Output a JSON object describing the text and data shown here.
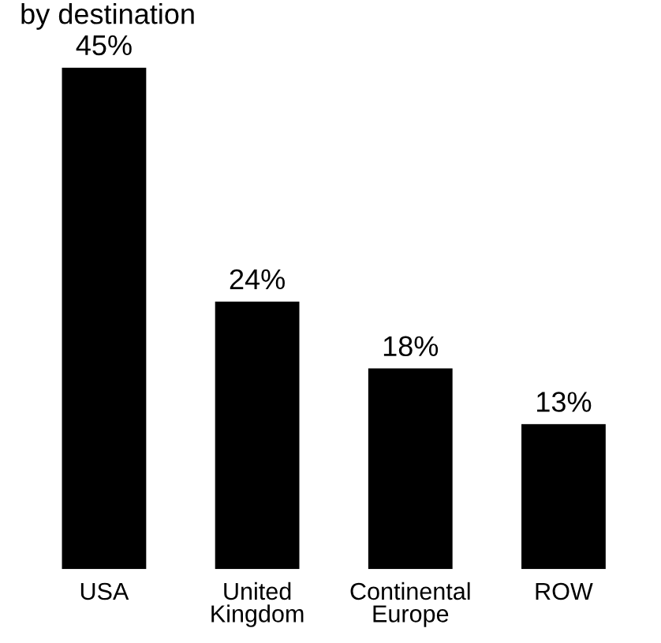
{
  "chart_data": {
    "type": "bar",
    "title": "by destination",
    "categories": [
      "USA",
      "United Kingdom",
      "Continental Europe",
      "ROW"
    ],
    "values": [
      45,
      24,
      18,
      13
    ],
    "color": "#000000",
    "value_labels": [
      "45%",
      "24%",
      "18%",
      "13%"
    ]
  }
}
